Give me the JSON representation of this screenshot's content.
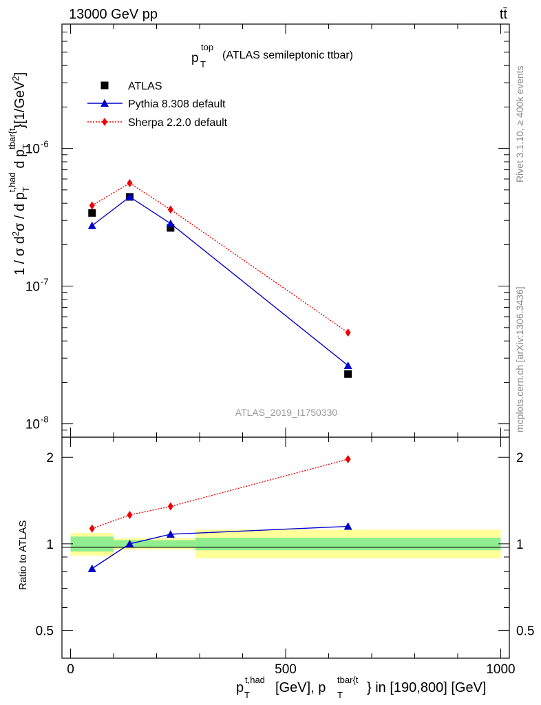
{
  "header": {
    "left": "13000 GeV pp",
    "right": "tt̄"
  },
  "side_labels": {
    "rivet": "Rivet 3.1.10, ≥ 400k events",
    "mcplots": "mcplots.cern.ch [arXiv:1306.3436]"
  },
  "watermark": "ATLAS_2019_I1750330",
  "chart_data": {
    "type": "line",
    "title": {
      "main": "p",
      "sub": "T",
      "sup": "top",
      "rest": "(ATLAS semileptonic ttbar)"
    },
    "xlabel": {
      "p1": "p",
      "sub1": "T",
      "sup1": "t,had",
      "mid": "[GeV], p",
      "sub2": "T",
      "sup2": "tbar{t",
      "end": "} in [190,800] [GeV]"
    },
    "ylabel_main": "1 / σ d²σ / d p_T^{t,had} d p_T^{tbar{t}} [1/GeV²]",
    "ylabel_ratio": "Ratio to ATLAS",
    "xlim": [
      -20,
      1020
    ],
    "ylim_main": [
      8e-09,
      8e-06
    ],
    "ylim_ratio": [
      0.4,
      2.35
    ],
    "x_ticks_labeled": [
      "0",
      "500",
      "1000"
    ],
    "y_ticks_main": [
      "10⁻⁶",
      "10⁻⁷",
      "10⁻⁸"
    ],
    "y_ticks_ratio": [
      "2",
      "1",
      "0.5"
    ],
    "bins": [
      {
        "lo": 0,
        "hi": 100
      },
      {
        "lo": 100,
        "hi": 175
      },
      {
        "lo": 175,
        "hi": 290
      },
      {
        "lo": 290,
        "hi": 1000
      }
    ],
    "x": [
      50,
      137.5,
      232.5,
      645
    ],
    "series": [
      {
        "name": "ATLAS",
        "marker": "square",
        "color": "#000000",
        "line": "none",
        "values": [
          3.4e-07,
          4.45e-07,
          2.65e-07,
          2.3e-08
        ],
        "ratio": [
          1,
          1,
          1,
          1
        ]
      },
      {
        "name": "Pythia 8.308 default",
        "marker": "triangle",
        "color": "#0000cc",
        "line": "solid",
        "values": [
          2.75e-07,
          4.45e-07,
          2.85e-07,
          2.65e-08
        ],
        "ratio": [
          0.82,
          1.0,
          1.08,
          1.15
        ]
      },
      {
        "name": "Sherpa 2.2.0 default",
        "marker": "diamond",
        "color": "#ee0000",
        "line": "dotted",
        "values": [
          3.85e-07,
          5.6e-07,
          3.6e-07,
          4.6e-08
        ],
        "ratio": [
          1.13,
          1.26,
          1.35,
          1.97
        ]
      }
    ],
    "uncertainty_bands": {
      "green_color": "#90ee90",
      "yellow_color": "#ffff99",
      "inner": [
        [
          0.94,
          1.06
        ],
        [
          0.97,
          1.03
        ],
        [
          0.97,
          1.03
        ],
        [
          0.95,
          1.05
        ]
      ],
      "outer": [
        [
          0.91,
          1.09
        ],
        [
          0.955,
          1.045
        ],
        [
          0.955,
          1.045
        ],
        [
          0.89,
          1.12
        ]
      ]
    }
  }
}
